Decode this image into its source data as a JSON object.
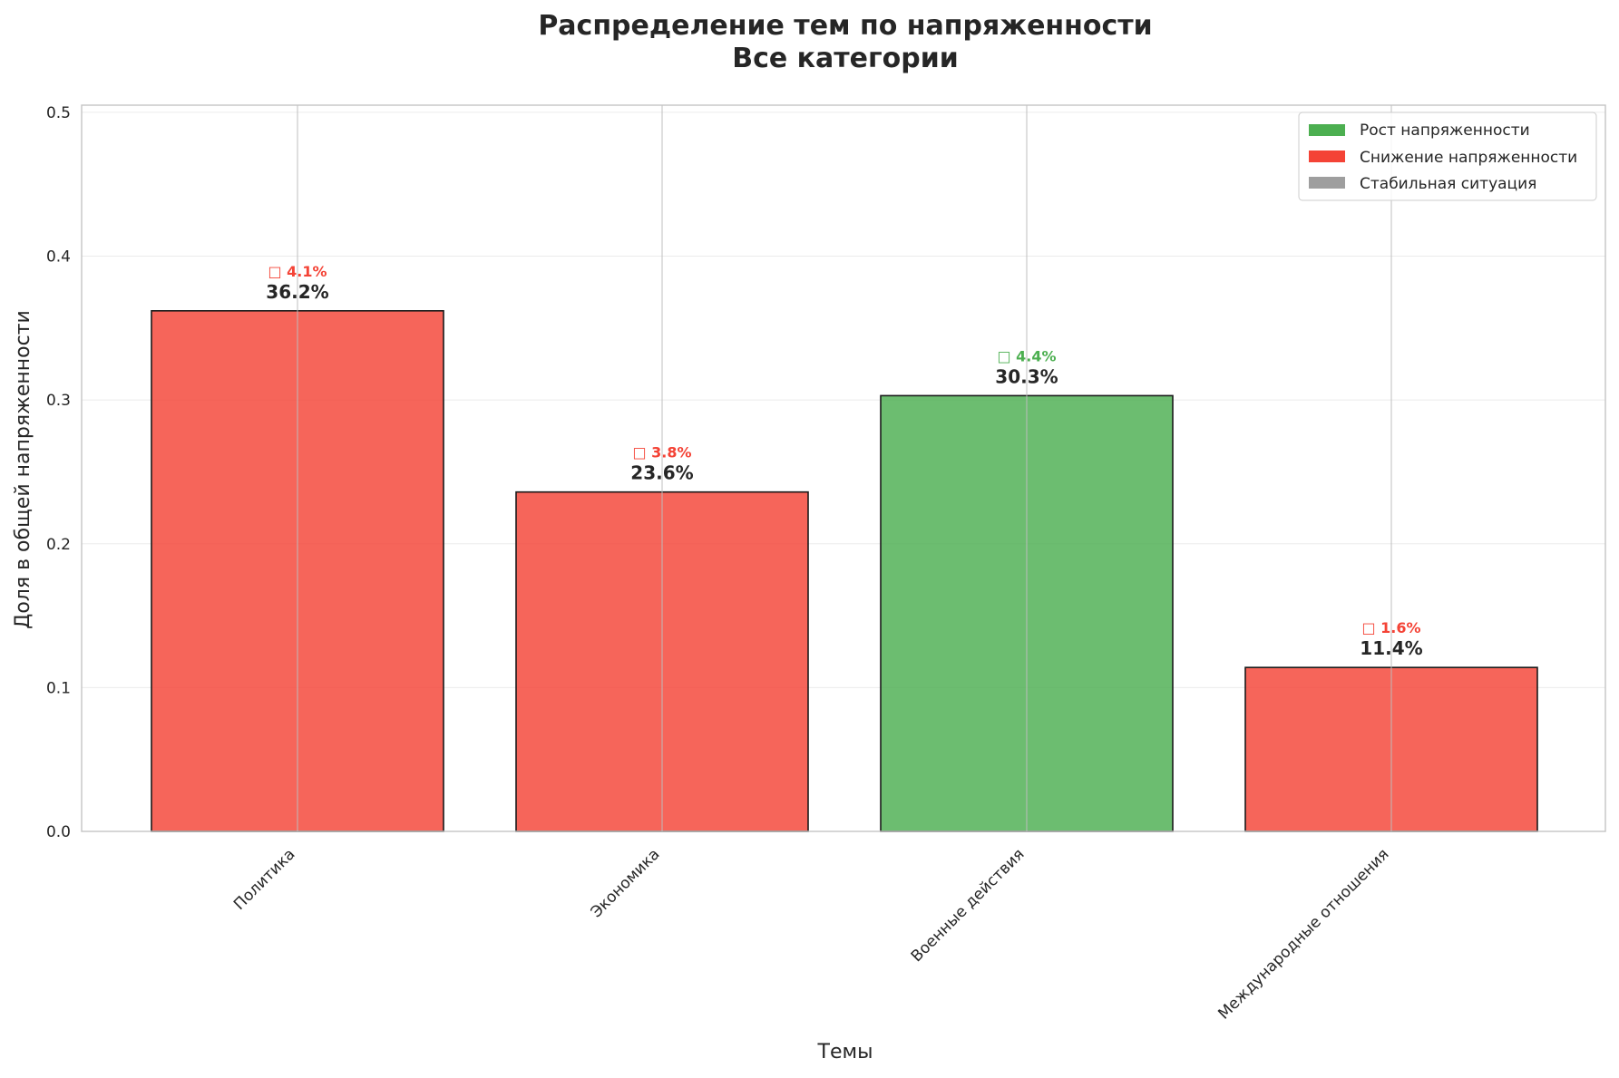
{
  "chart_data": {
    "type": "bar",
    "title": [
      "Распределение тем по напряженности",
      "Все категории"
    ],
    "xlabel": "Темы",
    "ylabel": "Доля в общей напряженности",
    "ylim": [
      0,
      0.505
    ],
    "yticks": [
      0.0,
      0.1,
      0.2,
      0.3,
      0.4,
      0.5
    ],
    "ytick_labels": [
      "0.0",
      "0.1",
      "0.2",
      "0.3",
      "0.4",
      "0.5"
    ],
    "grid": true,
    "legend_position": "top-right",
    "categories": [
      "Политика",
      "Экономика",
      "Военные действия",
      "Международные отношения"
    ],
    "values": [
      0.362,
      0.236,
      0.303,
      0.114
    ],
    "value_labels": [
      "36.2%",
      "23.6%",
      "30.3%",
      "11.4%"
    ],
    "trend": [
      "down",
      "down",
      "up",
      "down"
    ],
    "change_labels": [
      "□ 4.1%",
      "□ 3.8%",
      "□ 4.4%",
      "□ 1.6%"
    ],
    "legend": [
      {
        "key": "up",
        "label": "Рост напряженности",
        "color": "#4caf50"
      },
      {
        "key": "down",
        "label": "Снижение напряженности",
        "color": "#f44336"
      },
      {
        "key": "stable",
        "label": "Стабильная ситуация",
        "color": "#9e9e9e"
      }
    ],
    "colors": {
      "up": "#4caf50",
      "down": "#f44336",
      "stable": "#9e9e9e"
    }
  }
}
